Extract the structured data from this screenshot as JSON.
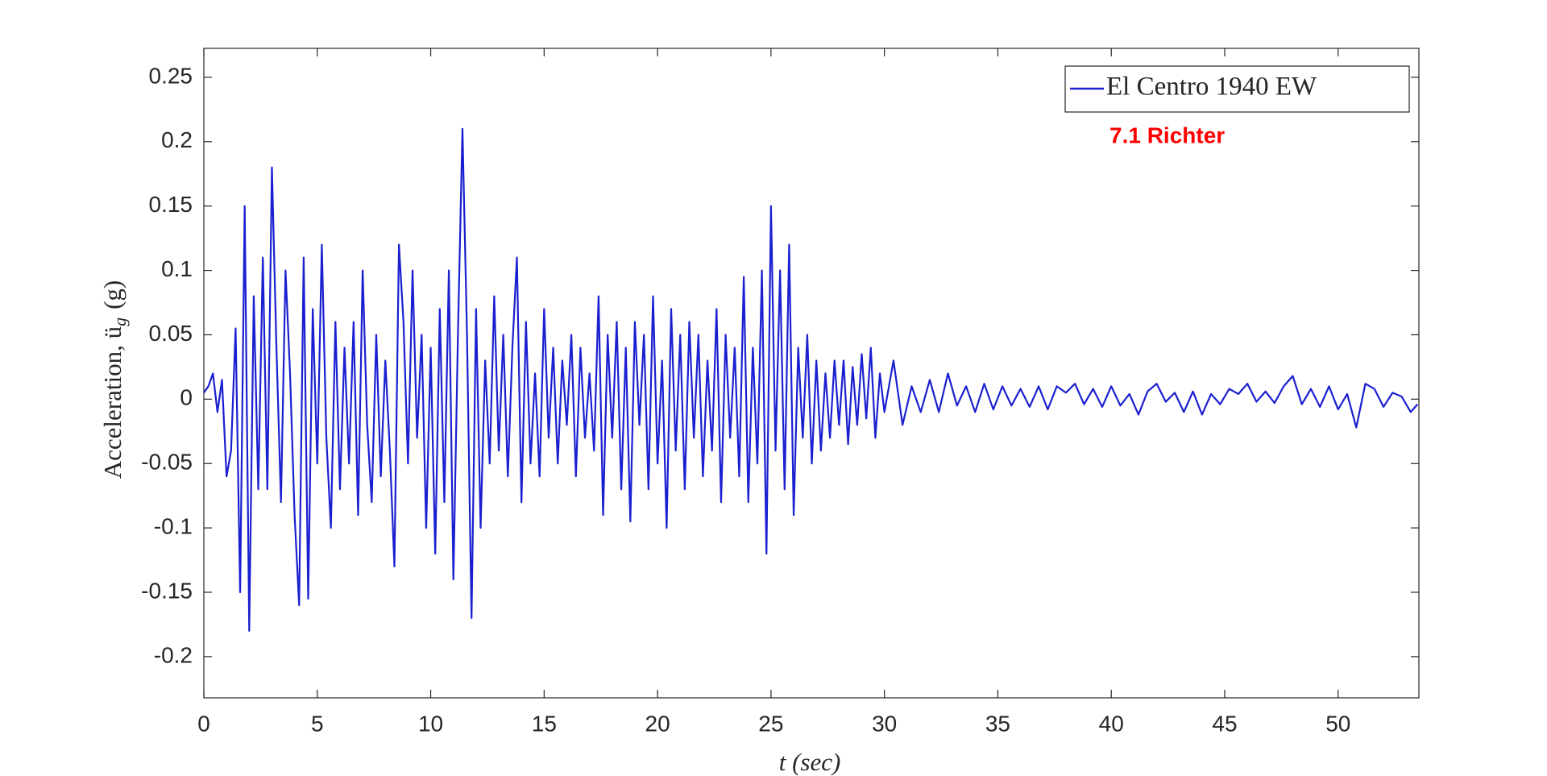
{
  "chart_data": {
    "type": "line",
    "ylabel": "Acceleration, ü",
    "ylabel_sub": "g",
    "ylabel_unit": "(g)",
    "xlabel": "t (sec)",
    "annotation": "7.1 Richter",
    "legend": "upper right",
    "xlim": [
      0,
      53.56
    ],
    "ylim": [
      -0.232,
      0.2725
    ],
    "xticks": [
      0,
      5,
      10,
      15,
      20,
      25,
      30,
      35,
      40,
      45,
      50
    ],
    "yticks": [
      -0.2,
      -0.15,
      -0.1,
      -0.05,
      0,
      0.05,
      0.1,
      0.15,
      0.2,
      0.25
    ],
    "grid": false,
    "x": [
      0,
      0.2,
      0.4,
      0.6,
      0.8,
      1,
      1.2,
      1.4,
      1.6,
      1.8,
      2,
      2.2,
      2.4,
      2.6,
      2.8,
      3,
      3.2,
      3.4,
      3.6,
      3.8,
      4,
      4.2,
      4.4,
      4.6,
      4.8,
      5,
      5.2,
      5.4,
      5.6,
      5.8,
      6,
      6.2,
      6.4,
      6.6,
      6.8,
      7,
      7.2,
      7.4,
      7.6,
      7.8,
      8,
      8.2,
      8.4,
      8.6,
      8.8,
      9,
      9.2,
      9.4,
      9.6,
      9.8,
      10,
      10.2,
      10.4,
      10.6,
      10.8,
      11,
      11.2,
      11.4,
      11.6,
      11.8,
      12,
      12.2,
      12.4,
      12.6,
      12.8,
      13,
      13.2,
      13.4,
      13.6,
      13.8,
      14,
      14.2,
      14.4,
      14.6,
      14.8,
      15,
      15.2,
      15.4,
      15.6,
      15.8,
      16,
      16.2,
      16.4,
      16.6,
      16.8,
      17,
      17.2,
      17.4,
      17.6,
      17.8,
      18,
      18.2,
      18.4,
      18.6,
      18.8,
      19,
      19.2,
      19.4,
      19.6,
      19.8,
      20,
      20.2,
      20.4,
      20.6,
      20.8,
      21,
      21.2,
      21.4,
      21.6,
      21.8,
      22,
      22.2,
      22.4,
      22.6,
      22.8,
      23,
      23.2,
      23.4,
      23.6,
      23.8,
      24,
      24.2,
      24.4,
      24.6,
      24.8,
      25,
      25.2,
      25.4,
      25.6,
      25.8,
      26,
      26.2,
      26.4,
      26.6,
      26.8,
      27,
      27.2,
      27.4,
      27.6,
      27.8,
      28,
      28.2,
      28.4,
      28.6,
      28.8,
      29,
      29.2,
      29.4,
      29.6,
      29.8,
      30,
      30.4,
      30.8,
      31.2,
      31.6,
      32,
      32.4,
      32.8,
      33.2,
      33.6,
      34,
      34.4,
      34.8,
      35.2,
      35.6,
      36,
      36.4,
      36.8,
      37.2,
      37.6,
      38,
      38.4,
      38.8,
      39.2,
      39.6,
      40,
      40.4,
      40.8,
      41.2,
      41.6,
      42,
      42.4,
      42.8,
      43.2,
      43.6,
      44,
      44.4,
      44.8,
      45.2,
      45.6,
      46,
      46.4,
      46.8,
      47.2,
      47.6,
      48,
      48.4,
      48.8,
      49.2,
      49.6,
      50,
      50.4,
      50.8,
      51.2,
      51.6,
      52,
      52.4,
      52.8,
      53.2,
      53.5
    ],
    "series": [
      {
        "name": "El Centro 1940 EW",
        "color": "#1a1fd0",
        "values": [
          0.005,
          0.01,
          0.02,
          -0.01,
          0.015,
          -0.06,
          -0.04,
          0.055,
          -0.15,
          0.15,
          -0.18,
          0.08,
          -0.07,
          0.11,
          -0.07,
          0.18,
          0.04,
          -0.08,
          0.1,
          0.02,
          -0.09,
          -0.16,
          0.11,
          -0.155,
          0.07,
          -0.05,
          0.12,
          -0.03,
          -0.1,
          0.06,
          -0.07,
          0.04,
          -0.05,
          0.06,
          -0.09,
          0.1,
          -0.02,
          -0.08,
          0.05,
          -0.06,
          0.03,
          -0.04,
          -0.13,
          0.12,
          0.06,
          -0.05,
          0.1,
          -0.03,
          0.05,
          -0.1,
          0.04,
          -0.12,
          0.07,
          -0.08,
          0.1,
          -0.14,
          0.05,
          0.21,
          0.05,
          -0.17,
          0.07,
          -0.1,
          0.03,
          -0.05,
          0.08,
          -0.04,
          0.05,
          -0.06,
          0.04,
          0.11,
          -0.08,
          0.06,
          -0.05,
          0.02,
          -0.06,
          0.07,
          -0.03,
          0.04,
          -0.05,
          0.03,
          -0.02,
          0.05,
          -0.06,
          0.04,
          -0.03,
          0.02,
          -0.04,
          0.08,
          -0.09,
          0.05,
          -0.03,
          0.06,
          -0.07,
          0.04,
          -0.095,
          0.06,
          -0.02,
          0.05,
          -0.07,
          0.08,
          -0.05,
          0.03,
          -0.1,
          0.07,
          -0.04,
          0.05,
          -0.07,
          0.06,
          -0.03,
          0.05,
          -0.06,
          0.03,
          -0.04,
          0.07,
          -0.08,
          0.05,
          -0.03,
          0.04,
          -0.06,
          0.095,
          -0.08,
          0.04,
          -0.05,
          0.1,
          -0.12,
          0.15,
          -0.04,
          0.1,
          -0.07,
          0.12,
          -0.09,
          0.04,
          -0.03,
          0.05,
          -0.05,
          0.03,
          -0.04,
          0.02,
          -0.03,
          0.03,
          -0.02,
          0.03,
          -0.035,
          0.025,
          -0.02,
          0.035,
          -0.015,
          0.04,
          -0.03,
          0.02,
          -0.01,
          0.03,
          -0.02,
          0.01,
          -0.01,
          0.015,
          -0.01,
          0.02,
          -0.005,
          0.01,
          -0.01,
          0.012,
          -0.008,
          0.01,
          -0.005,
          0.008,
          -0.006,
          0.01,
          -0.008,
          0.01,
          0.005,
          0.012,
          -0.004,
          0.008,
          -0.006,
          0.01,
          -0.005,
          0.004,
          -0.012,
          0.006,
          0.012,
          -0.002,
          0.005,
          -0.01,
          0.006,
          -0.012,
          0.004,
          -0.004,
          0.008,
          0.004,
          0.012,
          -0.002,
          0.006,
          -0.003,
          0.01,
          0.018,
          -0.004,
          0.008,
          -0.006,
          0.01,
          -0.008,
          0.004,
          -0.022,
          0.012,
          0.008,
          -0.006,
          0.005,
          0.002,
          -0.01,
          -0.004
        ]
      }
    ]
  }
}
